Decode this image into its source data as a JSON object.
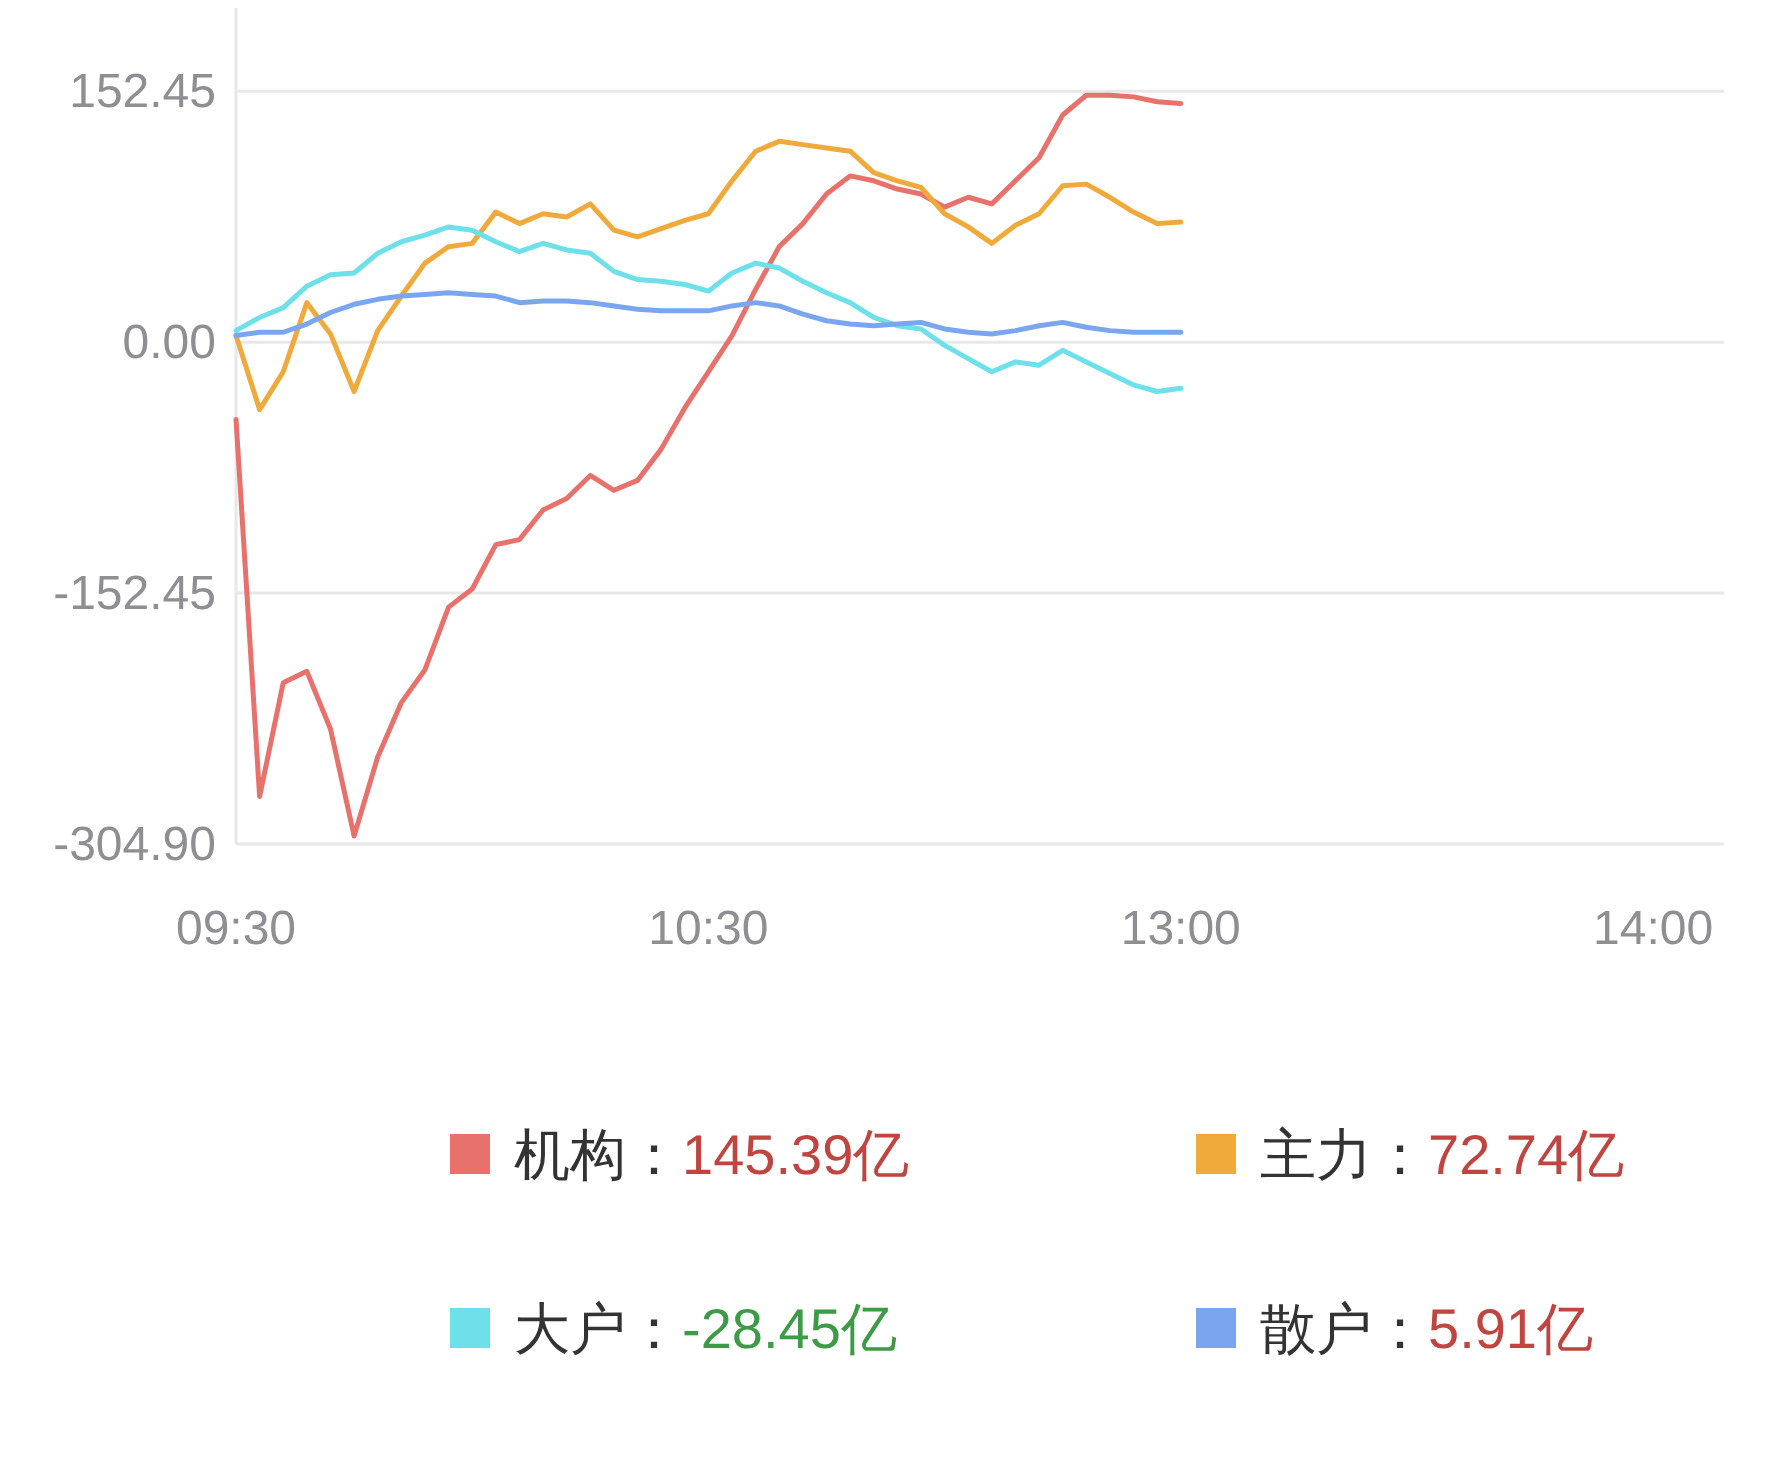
{
  "chart_data": {
    "type": "line",
    "legend": "bottom",
    "grid": "y",
    "marker": "none",
    "line_style": "solid",
    "categories": [
      "09:30",
      null,
      null,
      null,
      null,
      null,
      null,
      null,
      null,
      null,
      null,
      null,
      null,
      null,
      null,
      null,
      null,
      null,
      null,
      null,
      "10:30",
      null,
      null,
      null,
      null,
      null,
      null,
      null,
      null,
      null,
      null,
      null,
      null,
      null,
      null,
      null,
      null,
      null,
      null,
      null,
      "13:00",
      null,
      null,
      null,
      null,
      null,
      null,
      null,
      null,
      null,
      null,
      null,
      null,
      null,
      null,
      null,
      null,
      null,
      null,
      null,
      "14:00",
      null,
      null,
      null
    ],
    "ylim": [
      -304.9,
      203
    ],
    "yticks": [
      {
        "value": 152.45,
        "label": "152.45"
      },
      {
        "value": 0,
        "label": "0.00"
      },
      {
        "value": -152.45,
        "label": "-152.45"
      },
      {
        "value": -304.9,
        "label": "-304.90"
      }
    ],
    "series": [
      {
        "name": "机构：",
        "color": "#e8716b",
        "values": [
          -47,
          -276,
          -207,
          -200,
          -235,
          -300,
          -252,
          -219,
          -199,
          -161,
          -150,
          -123,
          -120,
          -102,
          -95,
          -81,
          -90,
          -84,
          -65,
          -40,
          -18,
          4,
          32,
          58,
          72,
          90,
          101,
          98,
          93,
          90,
          82,
          88,
          84,
          98,
          112,
          138,
          150,
          150,
          149,
          146,
          145,
          null,
          null,
          null,
          null,
          null,
          null,
          null,
          null,
          null,
          null,
          null,
          null,
          null,
          null,
          null,
          null,
          null,
          null,
          null,
          null,
          null,
          null,
          null
        ]
      },
      {
        "name": "主力：",
        "color": "#f0aa3c",
        "values": [
          4,
          -41,
          -18,
          24,
          5,
          -30,
          7,
          28,
          48,
          58,
          60,
          79,
          72,
          78,
          76,
          84,
          68,
          64,
          69,
          74,
          78,
          98,
          116,
          122,
          120,
          118,
          116,
          103,
          98,
          94,
          78,
          70,
          60,
          71,
          78,
          95,
          96,
          88,
          79,
          72,
          73,
          null,
          null,
          null,
          null,
          null,
          null,
          null,
          null,
          null,
          null,
          null,
          null,
          null,
          null,
          null,
          null,
          null,
          null,
          null,
          null,
          null,
          null,
          null
        ]
      },
      {
        "name": "大户：",
        "color": "#6ee0ea",
        "values": [
          7,
          15,
          21,
          34,
          41,
          42,
          54,
          61,
          65,
          70,
          68,
          61,
          55,
          60,
          56,
          54,
          43,
          38,
          37,
          35,
          31,
          42,
          48,
          45,
          37,
          30,
          24,
          15,
          10,
          8,
          -2,
          -10,
          -18,
          -12,
          -14,
          -5,
          -12,
          -19,
          -26,
          -30,
          -28,
          null,
          null,
          null,
          null,
          null,
          null,
          null,
          null,
          null,
          null,
          null,
          null,
          null,
          null,
          null,
          null,
          null,
          null,
          null,
          null,
          null,
          null,
          null
        ]
      },
      {
        "name": "散户：",
        "color": "#7aa6f0",
        "values": [
          4,
          6,
          6,
          11,
          18,
          23,
          26,
          28,
          29,
          30,
          29,
          28,
          24,
          25,
          25,
          24,
          22,
          20,
          19,
          19,
          19,
          22,
          24,
          22,
          17,
          13,
          11,
          10,
          11,
          12,
          8,
          6,
          5,
          7,
          10,
          12,
          9,
          7,
          6,
          6,
          6,
          null,
          null,
          null,
          null,
          null,
          null,
          null,
          null,
          null,
          null,
          null,
          null,
          null,
          null,
          null,
          null,
          null,
          null,
          null,
          null,
          null,
          null,
          null
        ]
      }
    ],
    "annotations": [
      "145.39亿",
      "72.74亿",
      "-28.45亿",
      "5.91亿"
    ]
  }
}
